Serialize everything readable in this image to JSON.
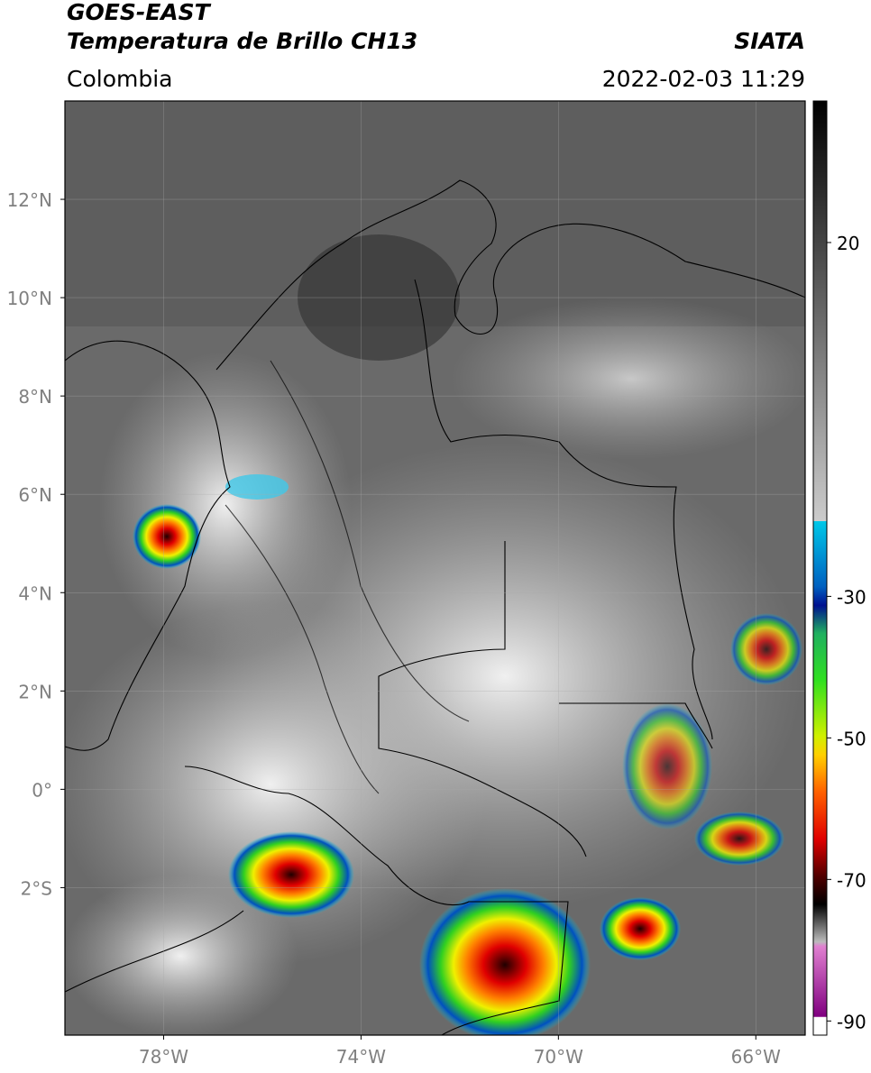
{
  "header": {
    "title": "GOES-EAST",
    "subtitle": "Temperatura de Brillo CH13",
    "source": "SIATA",
    "region": "Colombia",
    "datetime": "2022-02-03 11:29"
  },
  "map": {
    "xlim": [
      -80,
      -65
    ],
    "ylim": [
      -5,
      14
    ],
    "lon_ticks": [
      {
        "value": -78,
        "label": "78°W"
      },
      {
        "value": -74,
        "label": "74°W"
      },
      {
        "value": -70,
        "label": "70°W"
      },
      {
        "value": -66,
        "label": "66°W"
      }
    ],
    "lat_ticks": [
      {
        "value": 12,
        "label": "12°N"
      },
      {
        "value": 10,
        "label": "10°N"
      },
      {
        "value": 8,
        "label": "8°N"
      },
      {
        "value": 6,
        "label": "6°N"
      },
      {
        "value": 4,
        "label": "4°N"
      },
      {
        "value": 2,
        "label": "2°N"
      },
      {
        "value": 0,
        "label": "0°"
      },
      {
        "value": -2,
        "label": "2°S"
      }
    ],
    "grid": true,
    "colorbar": {
      "lim": [
        -92,
        40
      ],
      "ticks": [
        20,
        -30,
        -50,
        -70,
        -90
      ]
    }
  }
}
